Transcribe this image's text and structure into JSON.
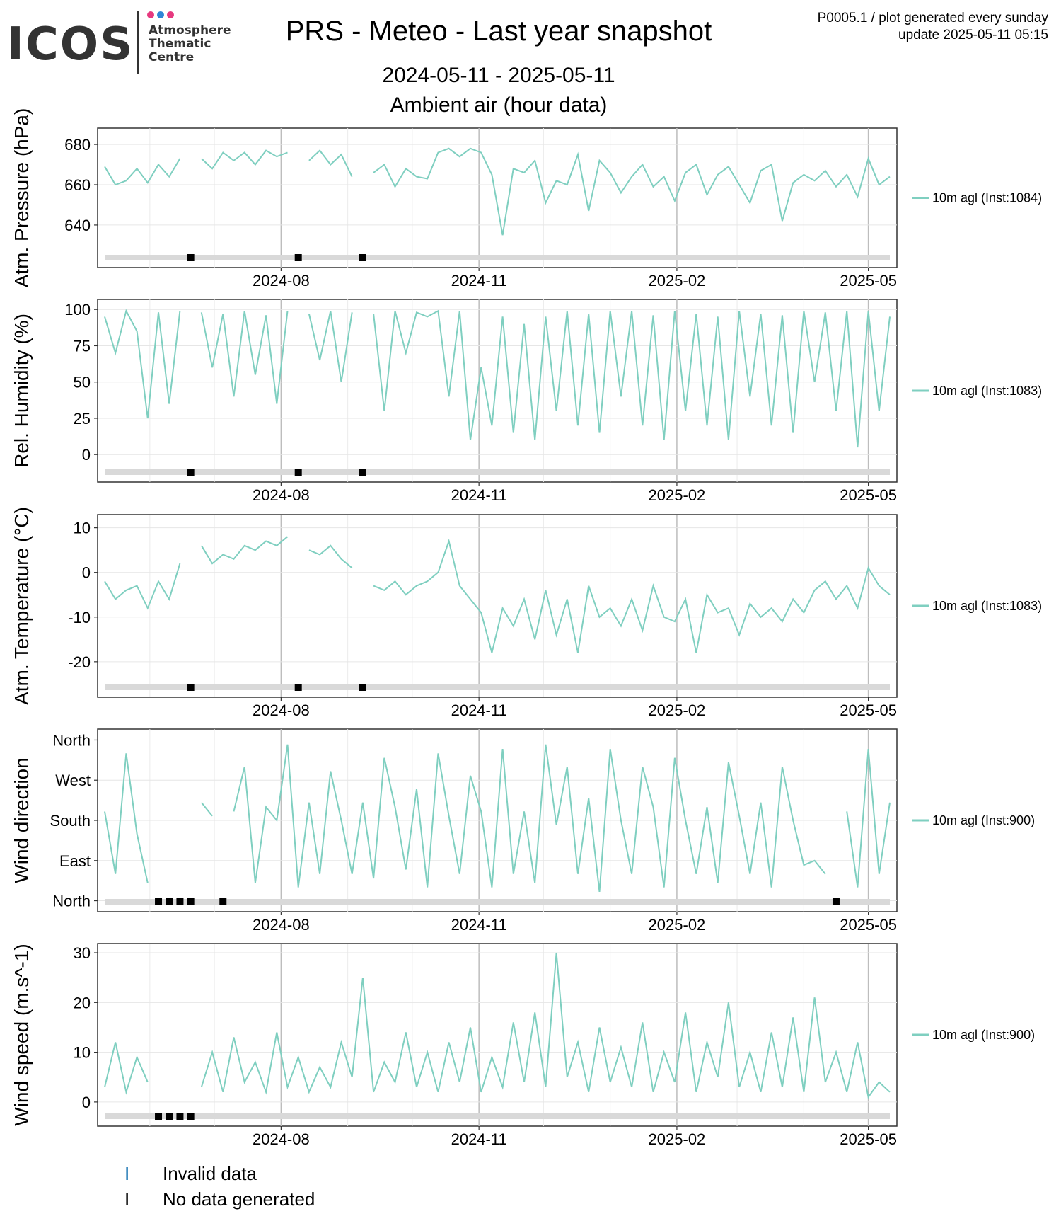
{
  "header": {
    "logo_text": "ICOS",
    "logo_sub": [
      "Atmosphere",
      "Thematic",
      "Centre"
    ],
    "title": "PRS - Meteo - Last year snapshot",
    "subtitle_range": "2024-05-11 - 2025-05-11",
    "subtitle_data": "Ambient air (hour data)",
    "note_line1": "P0005.1 / plot generated every sunday",
    "note_line2": "update  2025-05-11 05:15"
  },
  "colors": {
    "series": "#7fcfc0",
    "nodata": "#000000",
    "invalid": "#1f77b4",
    "track": "#d9d9d9",
    "logo_dot1": "#e6397f",
    "logo_dot2": "#2f86d6",
    "logo_dot3": "#e6397f"
  },
  "x_ticks": [
    "2024-08",
    "2024-11",
    "2025-02",
    "2025-05"
  ],
  "chart_data": [
    {
      "type": "line",
      "ylabel": "Atm. Pressure (hPa)",
      "y_ticks": [
        640,
        660,
        680
      ],
      "ylim": [
        621,
        686
      ],
      "series": [
        {
          "name": "10m agl (Inst:1084)",
          "x": [
            "2024-05-11",
            "2024-05-16",
            "2024-05-21",
            "2024-05-26",
            "2024-05-31",
            "2024-06-05",
            "2024-06-10",
            "2024-06-15",
            "2024-06-20",
            "2024-06-25",
            "2024-06-30",
            "2024-07-05",
            "2024-07-10",
            "2024-07-15",
            "2024-07-20",
            "2024-07-25",
            "2024-07-30",
            "2024-08-04",
            "2024-08-09",
            "2024-08-14",
            "2024-08-19",
            "2024-08-24",
            "2024-08-29",
            "2024-09-03",
            "2024-09-08",
            "2024-09-13",
            "2024-09-18",
            "2024-09-23",
            "2024-09-28",
            "2024-10-03",
            "2024-10-08",
            "2024-10-13",
            "2024-10-18",
            "2024-10-23",
            "2024-10-28",
            "2024-11-02",
            "2024-11-07",
            "2024-11-12",
            "2024-11-17",
            "2024-11-22",
            "2024-11-27",
            "2024-12-02",
            "2024-12-07",
            "2024-12-12",
            "2024-12-17",
            "2024-12-22",
            "2024-12-27",
            "2025-01-01",
            "2025-01-06",
            "2025-01-11",
            "2025-01-16",
            "2025-01-21",
            "2025-01-26",
            "2025-01-31",
            "2025-02-05",
            "2025-02-10",
            "2025-02-15",
            "2025-02-20",
            "2025-02-25",
            "2025-03-02",
            "2025-03-07",
            "2025-03-12",
            "2025-03-17",
            "2025-03-22",
            "2025-03-27",
            "2025-04-01",
            "2025-04-06",
            "2025-04-11",
            "2025-04-16",
            "2025-04-21",
            "2025-04-26",
            "2025-05-01",
            "2025-05-06",
            "2025-05-11"
          ],
          "values": [
            669,
            660,
            662,
            668,
            661,
            670,
            664,
            673,
            null,
            673,
            668,
            676,
            672,
            676,
            670,
            677,
            674,
            676,
            null,
            672,
            677,
            670,
            675,
            664,
            null,
            666,
            670,
            659,
            668,
            664,
            663,
            676,
            678,
            674,
            678,
            676,
            665,
            635,
            668,
            666,
            672,
            651,
            662,
            660,
            675,
            647,
            672,
            666,
            656,
            664,
            670,
            659,
            664,
            652,
            666,
            670,
            655,
            665,
            669,
            660,
            651,
            667,
            670,
            642,
            661,
            665,
            662,
            667,
            659,
            665,
            654,
            673,
            660,
            664
          ]
        }
      ]
    },
    {
      "type": "line",
      "ylabel": "Rel. Humidity (%)",
      "y_ticks": [
        0,
        25,
        50,
        75,
        100
      ],
      "ylim": [
        -16,
        104
      ],
      "series": [
        {
          "name": "10m agl (Inst:1083)",
          "x": [
            "2024-05-11",
            "2024-05-16",
            "2024-05-21",
            "2024-05-26",
            "2024-05-31",
            "2024-06-05",
            "2024-06-10",
            "2024-06-15",
            "2024-06-20",
            "2024-06-25",
            "2024-06-30",
            "2024-07-05",
            "2024-07-10",
            "2024-07-15",
            "2024-07-20",
            "2024-07-25",
            "2024-07-30",
            "2024-08-04",
            "2024-08-09",
            "2024-08-14",
            "2024-08-19",
            "2024-08-24",
            "2024-08-29",
            "2024-09-03",
            "2024-09-08",
            "2024-09-13",
            "2024-09-18",
            "2024-09-23",
            "2024-09-28",
            "2024-10-03",
            "2024-10-08",
            "2024-10-13",
            "2024-10-18",
            "2024-10-23",
            "2024-10-28",
            "2024-11-02",
            "2024-11-07",
            "2024-11-12",
            "2024-11-17",
            "2024-11-22",
            "2024-11-27",
            "2024-12-02",
            "2024-12-07",
            "2024-12-12",
            "2024-12-17",
            "2024-12-22",
            "2024-12-27",
            "2025-01-01",
            "2025-01-06",
            "2025-01-11",
            "2025-01-16",
            "2025-01-21",
            "2025-01-26",
            "2025-01-31",
            "2025-02-05",
            "2025-02-10",
            "2025-02-15",
            "2025-02-20",
            "2025-02-25",
            "2025-03-02",
            "2025-03-07",
            "2025-03-12",
            "2025-03-17",
            "2025-03-22",
            "2025-03-27",
            "2025-04-01",
            "2025-04-06",
            "2025-04-11",
            "2025-04-16",
            "2025-04-21",
            "2025-04-26",
            "2025-05-01",
            "2025-05-06",
            "2025-05-11"
          ],
          "values": [
            95,
            70,
            99,
            85,
            25,
            98,
            35,
            99,
            null,
            98,
            60,
            97,
            40,
            99,
            55,
            96,
            35,
            99,
            null,
            97,
            65,
            99,
            50,
            98,
            null,
            97,
            30,
            99,
            70,
            98,
            95,
            99,
            40,
            99,
            10,
            60,
            20,
            95,
            15,
            90,
            10,
            95,
            30,
            99,
            20,
            97,
            15,
            99,
            40,
            99,
            20,
            96,
            10,
            99,
            30,
            97,
            20,
            95,
            10,
            99,
            40,
            97,
            20,
            96,
            15,
            99,
            50,
            98,
            30,
            99,
            5,
            99,
            30,
            95
          ]
        }
      ]
    },
    {
      "type": "line",
      "ylabel": "Atm. Temperature (°C)",
      "y_ticks": [
        -20,
        -10,
        0,
        10
      ],
      "ylim": [
        -27,
        12
      ],
      "series": [
        {
          "name": "10m agl (Inst:1083)",
          "x": [
            "2024-05-11",
            "2024-05-16",
            "2024-05-21",
            "2024-05-26",
            "2024-05-31",
            "2024-06-05",
            "2024-06-10",
            "2024-06-15",
            "2024-06-20",
            "2024-06-25",
            "2024-06-30",
            "2024-07-05",
            "2024-07-10",
            "2024-07-15",
            "2024-07-20",
            "2024-07-25",
            "2024-07-30",
            "2024-08-04",
            "2024-08-09",
            "2024-08-14",
            "2024-08-19",
            "2024-08-24",
            "2024-08-29",
            "2024-09-03",
            "2024-09-08",
            "2024-09-13",
            "2024-09-18",
            "2024-09-23",
            "2024-09-28",
            "2024-10-03",
            "2024-10-08",
            "2024-10-13",
            "2024-10-18",
            "2024-10-23",
            "2024-10-28",
            "2024-11-02",
            "2024-11-07",
            "2024-11-12",
            "2024-11-17",
            "2024-11-22",
            "2024-11-27",
            "2024-12-02",
            "2024-12-07",
            "2024-12-12",
            "2024-12-17",
            "2024-12-22",
            "2024-12-27",
            "2025-01-01",
            "2025-01-06",
            "2025-01-11",
            "2025-01-16",
            "2025-01-21",
            "2025-01-26",
            "2025-01-31",
            "2025-02-05",
            "2025-02-10",
            "2025-02-15",
            "2025-02-20",
            "2025-02-25",
            "2025-03-02",
            "2025-03-07",
            "2025-03-12",
            "2025-03-17",
            "2025-03-22",
            "2025-03-27",
            "2025-04-01",
            "2025-04-06",
            "2025-04-11",
            "2025-04-16",
            "2025-04-21",
            "2025-04-26",
            "2025-05-01",
            "2025-05-06",
            "2025-05-11"
          ],
          "values": [
            -2,
            -6,
            -4,
            -3,
            -8,
            -2,
            -6,
            2,
            null,
            6,
            2,
            4,
            3,
            6,
            5,
            7,
            6,
            8,
            null,
            5,
            4,
            6,
            3,
            1,
            null,
            -3,
            -4,
            -2,
            -5,
            -3,
            -2,
            0,
            7,
            -3,
            -6,
            -9,
            -18,
            -8,
            -12,
            -6,
            -15,
            -4,
            -14,
            -6,
            -18,
            -3,
            -10,
            -8,
            -12,
            -6,
            -13,
            -3,
            -10,
            -11,
            -6,
            -18,
            -5,
            -9,
            -8,
            -14,
            -7,
            -10,
            -8,
            -11,
            -6,
            -9,
            -4,
            -2,
            -6,
            -3,
            -8,
            1,
            -3,
            -5
          ]
        }
      ]
    },
    {
      "type": "line",
      "ylabel": "Wind direction",
      "y_ticks": [
        "North",
        "East",
        "South",
        "West",
        "North"
      ],
      "ylim": [
        -15,
        375
      ],
      "series": [
        {
          "name": "10m agl (Inst:900)",
          "x": [
            "2024-05-11",
            "2024-05-16",
            "2024-05-21",
            "2024-05-26",
            "2024-05-31",
            "2024-06-05",
            "2024-06-10",
            "2024-06-15",
            "2024-06-20",
            "2024-06-25",
            "2024-06-30",
            "2024-07-05",
            "2024-07-10",
            "2024-07-15",
            "2024-07-20",
            "2024-07-25",
            "2024-07-30",
            "2024-08-04",
            "2024-08-09",
            "2024-08-14",
            "2024-08-19",
            "2024-08-24",
            "2024-08-29",
            "2024-09-03",
            "2024-09-08",
            "2024-09-13",
            "2024-09-18",
            "2024-09-23",
            "2024-09-28",
            "2024-10-03",
            "2024-10-08",
            "2024-10-13",
            "2024-10-18",
            "2024-10-23",
            "2024-10-28",
            "2024-11-02",
            "2024-11-07",
            "2024-11-12",
            "2024-11-17",
            "2024-11-22",
            "2024-11-27",
            "2024-12-02",
            "2024-12-07",
            "2024-12-12",
            "2024-12-17",
            "2024-12-22",
            "2024-12-27",
            "2025-01-01",
            "2025-01-06",
            "2025-01-11",
            "2025-01-16",
            "2025-01-21",
            "2025-01-26",
            "2025-01-31",
            "2025-02-05",
            "2025-02-10",
            "2025-02-15",
            "2025-02-20",
            "2025-02-25",
            "2025-03-02",
            "2025-03-07",
            "2025-03-12",
            "2025-03-17",
            "2025-03-22",
            "2025-03-27",
            "2025-04-01",
            "2025-04-06",
            "2025-04-11",
            "2025-04-16",
            "2025-04-21",
            "2025-04-26",
            "2025-05-01",
            "2025-05-06",
            "2025-05-11"
          ],
          "values": [
            200,
            60,
            330,
            150,
            40,
            null,
            null,
            null,
            null,
            220,
            190,
            null,
            200,
            300,
            40,
            210,
            180,
            350,
            30,
            220,
            60,
            290,
            180,
            60,
            220,
            50,
            320,
            210,
            70,
            250,
            30,
            330,
            190,
            60,
            280,
            200,
            30,
            340,
            60,
            200,
            40,
            350,
            170,
            300,
            60,
            230,
            20,
            340,
            180,
            60,
            300,
            210,
            30,
            320,
            180,
            60,
            210,
            40,
            310,
            190,
            60,
            220,
            30,
            300,
            180,
            80,
            90,
            60,
            null,
            200,
            30,
            340,
            60,
            220
          ]
        }
      ]
    },
    {
      "type": "line",
      "ylabel": "Wind speed (m.s^-1)",
      "y_ticks": [
        0,
        10,
        20,
        30
      ],
      "ylim": [
        -4,
        31
      ],
      "series": [
        {
          "name": "10m agl (Inst:900)",
          "x": [
            "2024-05-11",
            "2024-05-16",
            "2024-05-21",
            "2024-05-26",
            "2024-05-31",
            "2024-06-05",
            "2024-06-10",
            "2024-06-15",
            "2024-06-20",
            "2024-06-25",
            "2024-06-30",
            "2024-07-05",
            "2024-07-10",
            "2024-07-15",
            "2024-07-20",
            "2024-07-25",
            "2024-07-30",
            "2024-08-04",
            "2024-08-09",
            "2024-08-14",
            "2024-08-19",
            "2024-08-24",
            "2024-08-29",
            "2024-09-03",
            "2024-09-08",
            "2024-09-13",
            "2024-09-18",
            "2024-09-23",
            "2024-09-28",
            "2024-10-03",
            "2024-10-08",
            "2024-10-13",
            "2024-10-18",
            "2024-10-23",
            "2024-10-28",
            "2024-11-02",
            "2024-11-07",
            "2024-11-12",
            "2024-11-17",
            "2024-11-22",
            "2024-11-27",
            "2024-12-02",
            "2024-12-07",
            "2024-12-12",
            "2024-12-17",
            "2024-12-22",
            "2024-12-27",
            "2025-01-01",
            "2025-01-06",
            "2025-01-11",
            "2025-01-16",
            "2025-01-21",
            "2025-01-26",
            "2025-01-31",
            "2025-02-05",
            "2025-02-10",
            "2025-02-15",
            "2025-02-20",
            "2025-02-25",
            "2025-03-02",
            "2025-03-07",
            "2025-03-12",
            "2025-03-17",
            "2025-03-22",
            "2025-03-27",
            "2025-04-01",
            "2025-04-06",
            "2025-04-11",
            "2025-04-16",
            "2025-04-21",
            "2025-04-26",
            "2025-05-01",
            "2025-05-06",
            "2025-05-11"
          ],
          "values": [
            3,
            12,
            2,
            9,
            4,
            null,
            null,
            null,
            null,
            3,
            10,
            2,
            13,
            4,
            8,
            2,
            14,
            3,
            9,
            2,
            7,
            3,
            12,
            5,
            25,
            2,
            8,
            4,
            14,
            3,
            10,
            2,
            12,
            4,
            15,
            2,
            9,
            3,
            16,
            4,
            18,
            3,
            30,
            5,
            12,
            2,
            15,
            4,
            11,
            3,
            16,
            2,
            10,
            4,
            18,
            2,
            12,
            5,
            20,
            3,
            10,
            2,
            14,
            3,
            17,
            2,
            21,
            4,
            10,
            2,
            12,
            1,
            4,
            2
          ]
        }
      ]
    }
  ],
  "legend_bottom": {
    "invalid_label": "Invalid data",
    "nodata_label": "No data generated",
    "mark": "I"
  }
}
